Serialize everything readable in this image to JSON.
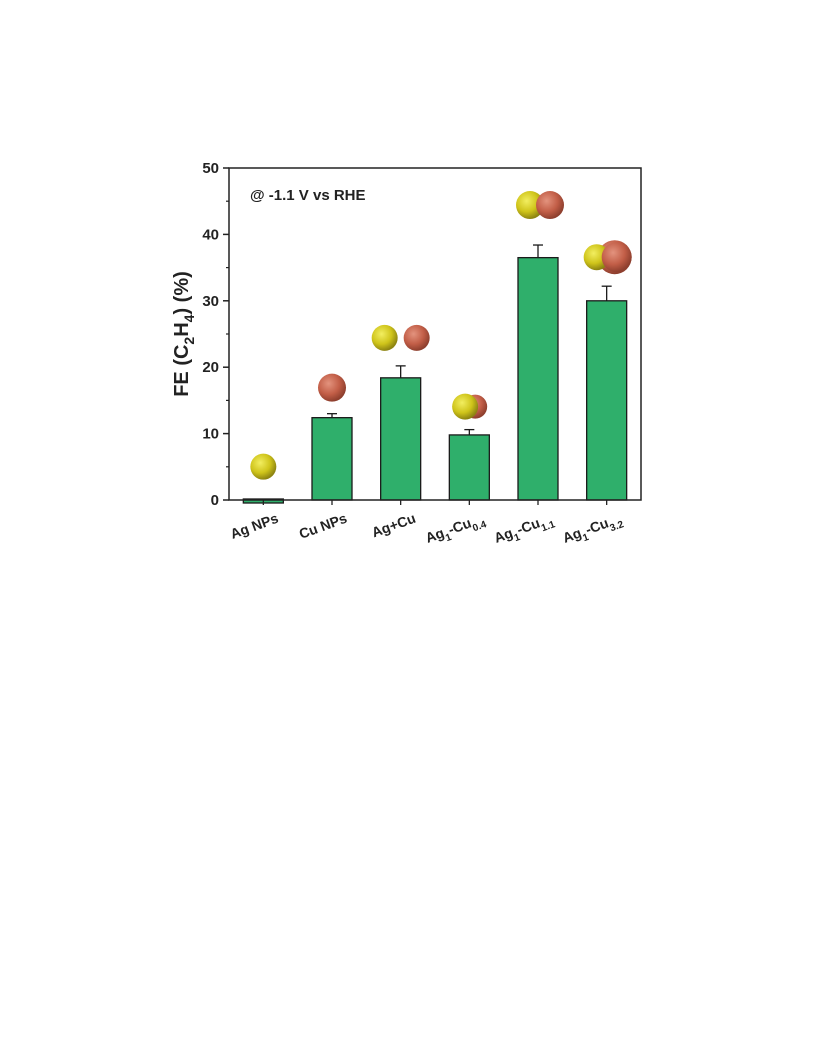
{
  "chart_data": {
    "type": "bar",
    "title": "",
    "annotation": "@ -1.1 V vs RHE",
    "ylabel": {
      "prefix": "FE (C",
      "sub1": "2",
      "mid": "H",
      "sub2": "4",
      "suffix": ")  (%)"
    },
    "ylim": [
      0,
      50
    ],
    "yticks": [
      "0",
      "10",
      "20",
      "30",
      "40",
      "50"
    ],
    "categories": [
      {
        "base": "Ag NPs",
        "sub1": "",
        "mid": "",
        "sub2": ""
      },
      {
        "base": "Cu NPs",
        "sub1": "",
        "mid": "",
        "sub2": ""
      },
      {
        "base": "Ag+Cu",
        "sub1": "",
        "mid": "",
        "sub2": ""
      },
      {
        "base": "Ag",
        "sub1": "1",
        "mid": "-Cu",
        "sub2": "0.4"
      },
      {
        "base": "Ag",
        "sub1": "1",
        "mid": "-Cu",
        "sub2": "1.1"
      },
      {
        "base": "Ag",
        "sub1": "1",
        "mid": "-Cu",
        "sub2": "3.2"
      }
    ],
    "values": [
      0.5,
      12.4,
      18.4,
      9.8,
      36.5,
      30.0
    ],
    "errors": [
      0,
      0.6,
      1.8,
      0.8,
      1.9,
      2.2
    ],
    "particles": [
      "ag",
      "cu",
      "ag+cu",
      "janus-small",
      "janus-pair",
      "janus-large"
    ],
    "bar_color": "#2faf6b",
    "ag_color": "#d8d21a",
    "cu_color": "#c9654f",
    "grid": false
  }
}
